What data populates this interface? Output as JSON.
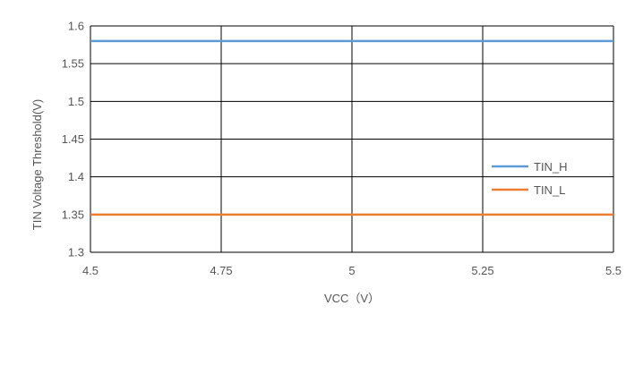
{
  "chart_data": {
    "type": "line",
    "title": "",
    "xlabel": "VCC（V）",
    "ylabel": "TIN Voltage Threshold(V)",
    "x": [
      4.5,
      4.75,
      5,
      5.25,
      5.5
    ],
    "xlim": [
      4.5,
      5.5
    ],
    "ylim": [
      1.3,
      1.6
    ],
    "x_ticks": [
      "4.5",
      "4.75",
      "5",
      "5.25",
      "5.5"
    ],
    "y_ticks": [
      "1.3",
      "1.35",
      "1.4",
      "1.45",
      "1.5",
      "1.55",
      "1.6"
    ],
    "grid": true,
    "legend_position": "right",
    "series": [
      {
        "name": "TIN_H",
        "color": "#5b9bd5",
        "values": [
          1.58,
          1.58,
          1.58,
          1.58,
          1.58
        ]
      },
      {
        "name": "TIN_L",
        "color": "#ed7d31",
        "values": [
          1.35,
          1.35,
          1.35,
          1.35,
          1.35
        ]
      }
    ]
  }
}
